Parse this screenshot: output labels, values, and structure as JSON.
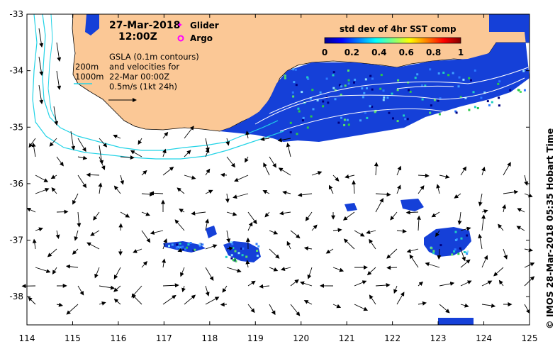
{
  "map": {
    "date": "27-Mar-2018",
    "time": "12:00Z",
    "legend": {
      "glider": "Glider",
      "argo": "Argo"
    },
    "isobaths": {
      "shallow": "200m",
      "deep": "1000m"
    },
    "gsla_note": [
      "GSLA (0.1m contours)",
      "and velocities for",
      "22-Mar 00:00Z",
      "0.5m/s (1kt 24h)"
    ],
    "colorbar": {
      "title": "std dev of 4hr SST comp",
      "ticks": [
        "0",
        "0.2",
        "0.4",
        "0.6",
        "0.8",
        "1"
      ],
      "range": [
        0,
        1
      ]
    },
    "credit": "© IMOS 28-Mar-2018 05:35 Hobart Time",
    "lon_ticks": [
      "114",
      "115",
      "116",
      "117",
      "118",
      "119",
      "120",
      "121",
      "122",
      "123",
      "124",
      "125"
    ],
    "lat_ticks": [
      "-33",
      "-34",
      "-35",
      "-36",
      "-37",
      "-38"
    ],
    "lon_range": [
      114,
      125
    ],
    "lat_range": [
      -38.5,
      -33
    ],
    "colors": {
      "land": "#fbc896",
      "isobath": "#22d3e6",
      "frame": "#000000"
    }
  }
}
